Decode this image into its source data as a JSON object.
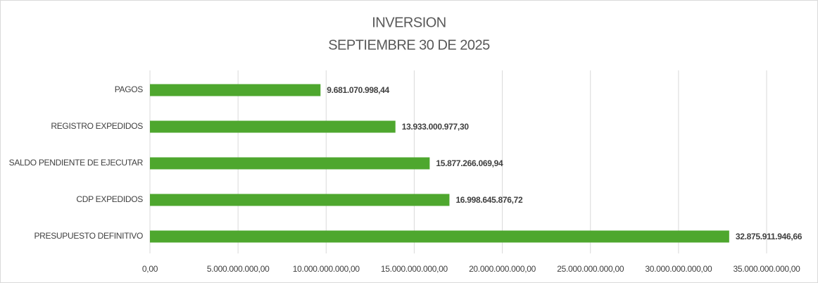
{
  "chart_data": {
    "type": "barh",
    "title": "INVERSION",
    "subtitle": "SEPTIEMBRE 30 DE 2025",
    "categories": [
      "PAGOS",
      "REGISTRO EXPEDIDOS",
      "SALDO PENDIENTE DE EJECUTAR",
      "CDP EXPEDIDOS",
      "PRESUPUESTO DEFINITIVO"
    ],
    "values": [
      9681070998.44,
      13933000977.3,
      15877266069.94,
      16998645876.72,
      32875911946.66
    ],
    "value_labels": [
      "9.681.070.998,44",
      "13.933.000.977,30",
      "15.877.266.069,94",
      "16.998.645.876,72",
      "32.875.911.946,66"
    ],
    "color": "#4ea72e",
    "xlim": [
      0,
      35000000000
    ],
    "xticks": [
      {
        "value": 0,
        "label": "0,00"
      },
      {
        "value": 5000000000,
        "label": "5.000.000.000,00"
      },
      {
        "value": 10000000000,
        "label": "10.000.000.000,00"
      },
      {
        "value": 15000000000,
        "label": "15.000.000.000,00"
      },
      {
        "value": 20000000000,
        "label": "20.000.000.000,00"
      },
      {
        "value": 25000000000,
        "label": "25.000.000.000,00"
      },
      {
        "value": 30000000000,
        "label": "30.000.000.000,00"
      },
      {
        "value": 35000000000,
        "label": "35.000.000.000,00"
      }
    ],
    "grid": true
  }
}
